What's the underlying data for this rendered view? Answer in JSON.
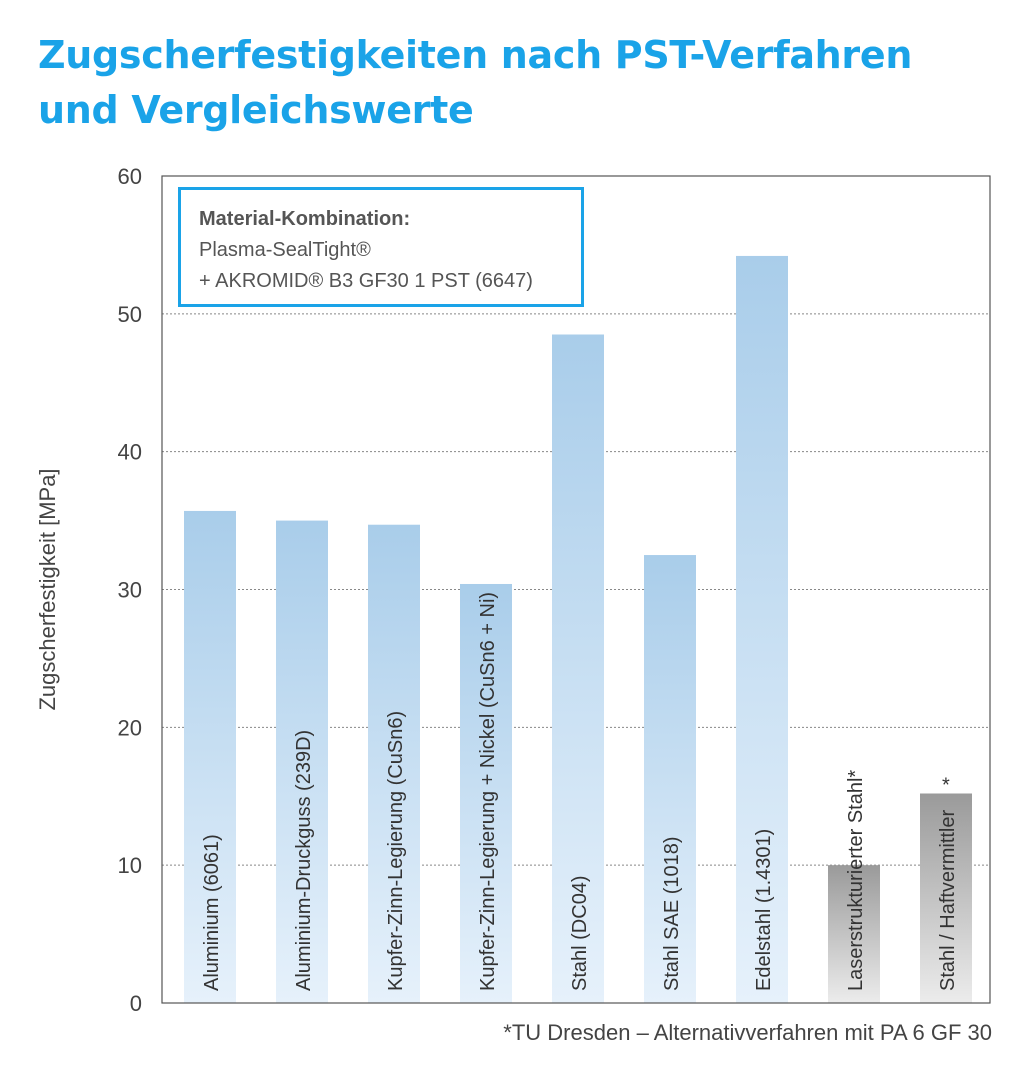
{
  "title": {
    "line1": "Zugscherfestigkeiten nach PST-Verfahren",
    "line2": "und Vergleichswerte"
  },
  "info_box": {
    "heading": "Material-Kombination:",
    "line1": "Plasma-SealTight®",
    "line2": "+ AKROMID® B3 GF30 1 PST (6647)"
  },
  "footnote": "*TU Dresden – Alternativverfahren mit PA 6 GF 30",
  "colors": {
    "bar_blue_top": "#a9cdea",
    "bar_blue_bottom": "#e6f1fb",
    "bar_gray_top": "#9a9a9a",
    "bar_gray_bottom": "#ececec",
    "accent": "#1aa3e8"
  },
  "chart_data": {
    "type": "bar",
    "ylabel": "Zugscherfestigkeit [MPa]",
    "xlabel": "",
    "ylim": [
      0,
      60
    ],
    "yticks": [
      0,
      10,
      20,
      30,
      40,
      50,
      60
    ],
    "grid": true,
    "categories": [
      "Aluminium (6061)",
      "Aluminium-Druckguss (239D)",
      "Kupfer-Zinn-Legierung (CuSn6)",
      "Kupfer-Zinn-Legierung + Nickel (CuSn6 + Ni)",
      "Stahl (DC04)",
      "Stahl SAE (1018)",
      "Edelstahl (1.4301)",
      "Laserstrukturierter Stahl*",
      "Stahl / Haftvermittler"
    ],
    "values": [
      35.7,
      35.0,
      34.7,
      30.4,
      48.5,
      32.5,
      54.2,
      10.0,
      15.2
    ],
    "styles": [
      "blue",
      "blue",
      "blue",
      "blue",
      "blue",
      "blue",
      "blue",
      "gray",
      "gray"
    ],
    "annotations": [
      {
        "bar": 8,
        "text": "*"
      }
    ]
  }
}
